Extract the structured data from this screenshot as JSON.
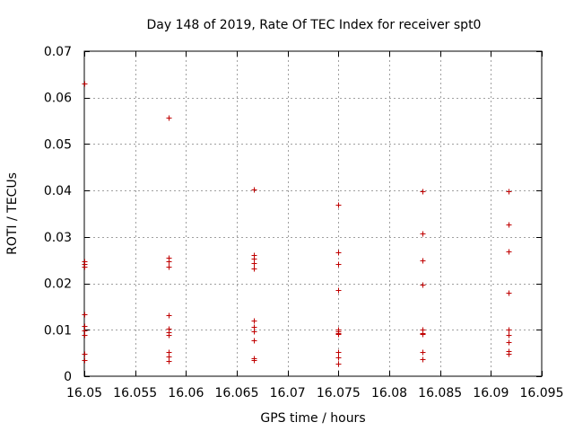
{
  "chart_data": {
    "type": "scatter",
    "title": "Day 148 of 2019, Rate Of TEC Index for receiver spt0",
    "xlabel": "GPS time / hours",
    "ylabel": "ROTI / TECUs",
    "xlim": [
      16.05,
      16.095
    ],
    "ylim": [
      0,
      0.07
    ],
    "grid": true,
    "marker_color": "#c00000",
    "x_ticks": [
      "16.05",
      "16.055",
      "16.06",
      "16.065",
      "16.07",
      "16.075",
      "16.08",
      "16.085",
      "16.09",
      "16.095"
    ],
    "y_ticks": [
      "0",
      "0.01",
      "0.02",
      "0.03",
      "0.04",
      "0.05",
      "0.06",
      "0.07"
    ],
    "x_tick_values": [
      16.05,
      16.055,
      16.06,
      16.065,
      16.07,
      16.075,
      16.08,
      16.085,
      16.09,
      16.095
    ],
    "y_tick_values": [
      0,
      0.01,
      0.02,
      0.03,
      0.04,
      0.05,
      0.06,
      0.07
    ],
    "series": [
      {
        "name": "spt0",
        "points": [
          [
            16.05,
            0.063
          ],
          [
            16.05,
            0.0247
          ],
          [
            16.05,
            0.0242
          ],
          [
            16.05,
            0.0236
          ],
          [
            16.05,
            0.0133
          ],
          [
            16.05,
            0.0108
          ],
          [
            16.05,
            0.0098
          ],
          [
            16.05,
            0.0089
          ],
          [
            16.05,
            0.0048
          ],
          [
            16.05,
            0.0035
          ],
          [
            16.0583,
            0.0557
          ],
          [
            16.0583,
            0.0256
          ],
          [
            16.0583,
            0.0247
          ],
          [
            16.0583,
            0.0236
          ],
          [
            16.0583,
            0.0131
          ],
          [
            16.0583,
            0.0103
          ],
          [
            16.0583,
            0.0094
          ],
          [
            16.0583,
            0.0089
          ],
          [
            16.0583,
            0.0052
          ],
          [
            16.0583,
            0.0042
          ],
          [
            16.0583,
            0.0033
          ],
          [
            16.0667,
            0.0402
          ],
          [
            16.0667,
            0.0262
          ],
          [
            16.0667,
            0.0253
          ],
          [
            16.0667,
            0.0243
          ],
          [
            16.0667,
            0.0232
          ],
          [
            16.0667,
            0.0119
          ],
          [
            16.0667,
            0.0107
          ],
          [
            16.0667,
            0.0097
          ],
          [
            16.0667,
            0.0078
          ],
          [
            16.0667,
            0.0039
          ],
          [
            16.0667,
            0.0035
          ],
          [
            16.075,
            0.0369
          ],
          [
            16.075,
            0.0266
          ],
          [
            16.075,
            0.0242
          ],
          [
            16.075,
            0.0185
          ],
          [
            16.075,
            0.0101
          ],
          [
            16.075,
            0.0097
          ],
          [
            16.075,
            0.0093
          ],
          [
            16.075,
            0.009
          ],
          [
            16.075,
            0.0052
          ],
          [
            16.075,
            0.004
          ],
          [
            16.075,
            0.0028
          ],
          [
            16.0833,
            0.0399
          ],
          [
            16.0833,
            0.0307
          ],
          [
            16.0833,
            0.025
          ],
          [
            16.0833,
            0.0198
          ],
          [
            16.0833,
            0.01
          ],
          [
            16.0833,
            0.0092
          ],
          [
            16.0833,
            0.009
          ],
          [
            16.0833,
            0.0052
          ],
          [
            16.0833,
            0.0036
          ],
          [
            16.0917,
            0.0398
          ],
          [
            16.0917,
            0.0327
          ],
          [
            16.0917,
            0.0268
          ],
          [
            16.0917,
            0.018
          ],
          [
            16.0917,
            0.01
          ],
          [
            16.0917,
            0.0088
          ],
          [
            16.0917,
            0.0074
          ],
          [
            16.0917,
            0.0055
          ],
          [
            16.0917,
            0.0048
          ]
        ]
      }
    ]
  }
}
